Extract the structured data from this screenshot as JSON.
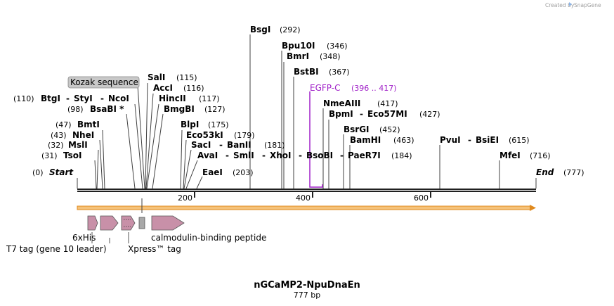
{
  "credit": {
    "created_by": "Created by",
    "brand": "SnapGene"
  },
  "map": {
    "name": "nGCaMP2-NpuDnaEn",
    "length_label": "777 bp"
  },
  "sites": {
    "bsgi": {
      "name": "BsgI",
      "pos": "(292)"
    },
    "bpu10i": {
      "name": "Bpu10I",
      "pos": "(346)"
    },
    "bmri": {
      "name": "BmrI",
      "pos": "(348)"
    },
    "bstbi": {
      "name": "BstBI",
      "pos": "(367)"
    },
    "nmeaiii": {
      "name": "NmeAIII",
      "pos": "(417)"
    },
    "bpmi": {
      "name": "BpmI",
      "sep": "-",
      "name2": "Eco57MI",
      "pos": "(427)"
    },
    "bsrgi": {
      "name": "BsrGI",
      "pos": "(452)"
    },
    "bamhi": {
      "name": "BamHI",
      "pos": "(463)"
    },
    "pvui": {
      "name": "PvuI",
      "sep": "-",
      "name2": "BsiEI",
      "pos": "(615)"
    },
    "mfei": {
      "name": "MfeI",
      "pos": "(716)"
    },
    "end": {
      "name": "End",
      "pos": "(777)"
    },
    "start": {
      "name": "Start",
      "pos": "(0)"
    },
    "tsoi": {
      "name": "TsoI",
      "pos": "(31)"
    },
    "msli": {
      "name": "MslI",
      "pos": "(32)"
    },
    "nhei": {
      "name": "NheI",
      "pos": "(43)"
    },
    "bmti": {
      "name": "BmtI",
      "pos": "(47)"
    },
    "bsabi": {
      "name": "BsaBI *",
      "pos": "(98)"
    },
    "btgi": {
      "name": "BtgI",
      "sep1": "-",
      "name2": "StyI",
      "sep2": "-",
      "name3": "NcoI",
      "pos": "(110)"
    },
    "sali": {
      "name": "SalI",
      "pos": "(115)"
    },
    "acci": {
      "name": "AccI",
      "pos": "(116)"
    },
    "hincii": {
      "name": "HincII",
      "pos": "(117)"
    },
    "bmgbi": {
      "name": "BmgBI",
      "pos": "(127)"
    },
    "blpi": {
      "name": "BlpI",
      "pos": "(175)"
    },
    "eco53ki": {
      "name": "Eco53kI",
      "pos": "(179)"
    },
    "saci": {
      "name": "SacI",
      "sep": "-",
      "name2": "BanII",
      "pos": "(181)"
    },
    "avai": {
      "name": "AvaI",
      "sep1": "-",
      "name2": "SmlI",
      "sep2": "-",
      "name3": "XhoI",
      "sep3": "-",
      "name4": "BsoBI",
      "sep4": "-",
      "name5": "PaeR7I",
      "pos": "(184)"
    },
    "eaei": {
      "name": "EaeI",
      "pos": "(203)"
    }
  },
  "features": {
    "kozak": "Kozak sequence",
    "egfp": {
      "name": "EGFP-C",
      "range": "(396 .. 417)"
    },
    "his": "6xHis",
    "t7tag": "T7 tag (gene 10 leader)",
    "xpress": "Xpress™ tag",
    "cbp": "calmodulin-binding peptide"
  },
  "ruler": {
    "tick200": "200",
    "tick400": "400",
    "tick600": "600"
  },
  "colors": {
    "egfp": "#a020c8",
    "orf_fill": "#f5c27a",
    "orf_stroke": "#e08a1e",
    "feature_fill": "#c890a8",
    "kozak_box": "#c8c8c8"
  }
}
